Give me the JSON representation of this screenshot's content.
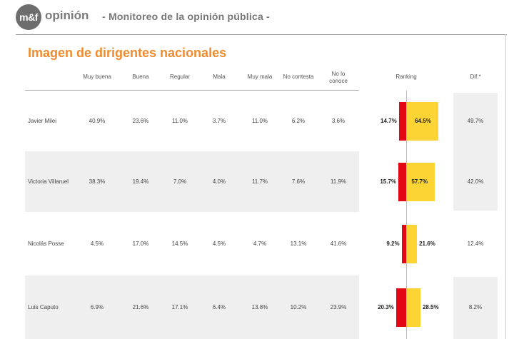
{
  "header": {
    "logo_text": "m&f",
    "brand": "opinión",
    "subtitle": "- Monitoreo de la opinión pública -"
  },
  "chart_data": {
    "type": "table",
    "title": "Imagen de dirigentes nacionales",
    "columns": [
      "Muy buena",
      "Buena",
      "Regular",
      "Mala",
      "Muy mala",
      "No contesta",
      "No lo conoce",
      "Ranking",
      "Dif.*"
    ],
    "ranking_series": [
      {
        "name": "negativa",
        "color": "#e30613"
      },
      {
        "name": "positiva",
        "color": "#fcd535"
      }
    ],
    "rows": [
      {
        "name": "Javier Milei",
        "values": [
          "40.9%",
          "23.6%",
          "11.0%",
          "3.7%",
          "11.0%",
          "6.2%",
          "3.6%"
        ],
        "negative": 14.7,
        "positive": 64.5,
        "negative_label": "14.7%",
        "positive_label": "64.5%",
        "dif": "49.7%"
      },
      {
        "name": "Victoria Villaruel",
        "values": [
          "38.3%",
          "19.4%",
          "7.0%",
          "4.0%",
          "11.7%",
          "7.6%",
          "11.9%"
        ],
        "negative": 15.7,
        "positive": 57.7,
        "negative_label": "15.7%",
        "positive_label": "57.7%",
        "dif": "42.0%"
      },
      {
        "name": "Nicolás Posse",
        "values": [
          "4.5%",
          "17.0%",
          "14.5%",
          "4.5%",
          "4.7%",
          "13.1%",
          "41.6%"
        ],
        "negative": 9.2,
        "positive": 21.6,
        "negative_label": "9.2%",
        "positive_label": "21.6%",
        "dif": "12.4%"
      },
      {
        "name": "Luis Caputo",
        "values": [
          "6.9%",
          "21.6%",
          "17.1%",
          "6.4%",
          "13.8%",
          "10.2%",
          "23.9%"
        ],
        "negative": 20.3,
        "positive": 28.5,
        "negative_label": "20.3%",
        "positive_label": "28.5%",
        "dif": "8.2%"
      }
    ]
  }
}
